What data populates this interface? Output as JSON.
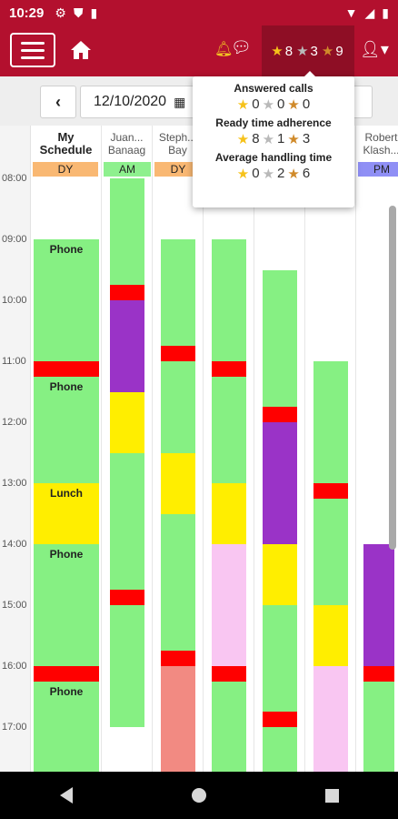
{
  "status_bar": {
    "time": "10:29"
  },
  "app_bar": {
    "ratings": {
      "gold": "8",
      "silver": "3",
      "bronze": "9"
    }
  },
  "date_row": {
    "date": "12/10/2020"
  },
  "time_labels": [
    "08:00",
    "09:00",
    "10:00",
    "11:00",
    "12:00",
    "13:00",
    "14:00",
    "15:00",
    "16:00",
    "17:00"
  ],
  "columns": [
    {
      "name_line1": "My",
      "name_line2": "Schedule",
      "shift": "DY",
      "shift_color": "#f9b873"
    },
    {
      "name_line1": "Juan...",
      "name_line2": "Banaag",
      "shift": "AM",
      "shift_color": "#8ef08e"
    },
    {
      "name_line1": "Steph...",
      "name_line2": "Bay",
      "shift": "DY",
      "shift_color": "#f9b873"
    },
    {
      "name_line1": "",
      "name_line2": "",
      "shift": "",
      "shift_color": ""
    },
    {
      "name_line1": "",
      "name_line2": "",
      "shift": "",
      "shift_color": ""
    },
    {
      "name_line1": "",
      "name_line2": "",
      "shift": "",
      "shift_color": ""
    },
    {
      "name_line1": "Robert",
      "name_line2": "Klash...",
      "shift": "PM",
      "shift_color": "#8f8ff5"
    }
  ],
  "activity_labels": {
    "phone": "Phone",
    "lunch": "Lunch"
  },
  "colors": {
    "brand": "#b3102e",
    "phone": "#86f083",
    "break": "#ff0000",
    "purple": "#9a33c7",
    "yellow": "#ffee00",
    "pink": "#f9c6f2",
    "salmon": "#f28a82"
  },
  "popover": {
    "answered_calls": {
      "title": "Answered calls",
      "gold": "0",
      "silver": "0",
      "bronze": "0"
    },
    "ready_time": {
      "title": "Ready time adherence",
      "gold": "8",
      "silver": "1",
      "bronze": "3"
    },
    "avg_handling": {
      "title": "Average handling time",
      "gold": "0",
      "silver": "2",
      "bronze": "6"
    }
  }
}
